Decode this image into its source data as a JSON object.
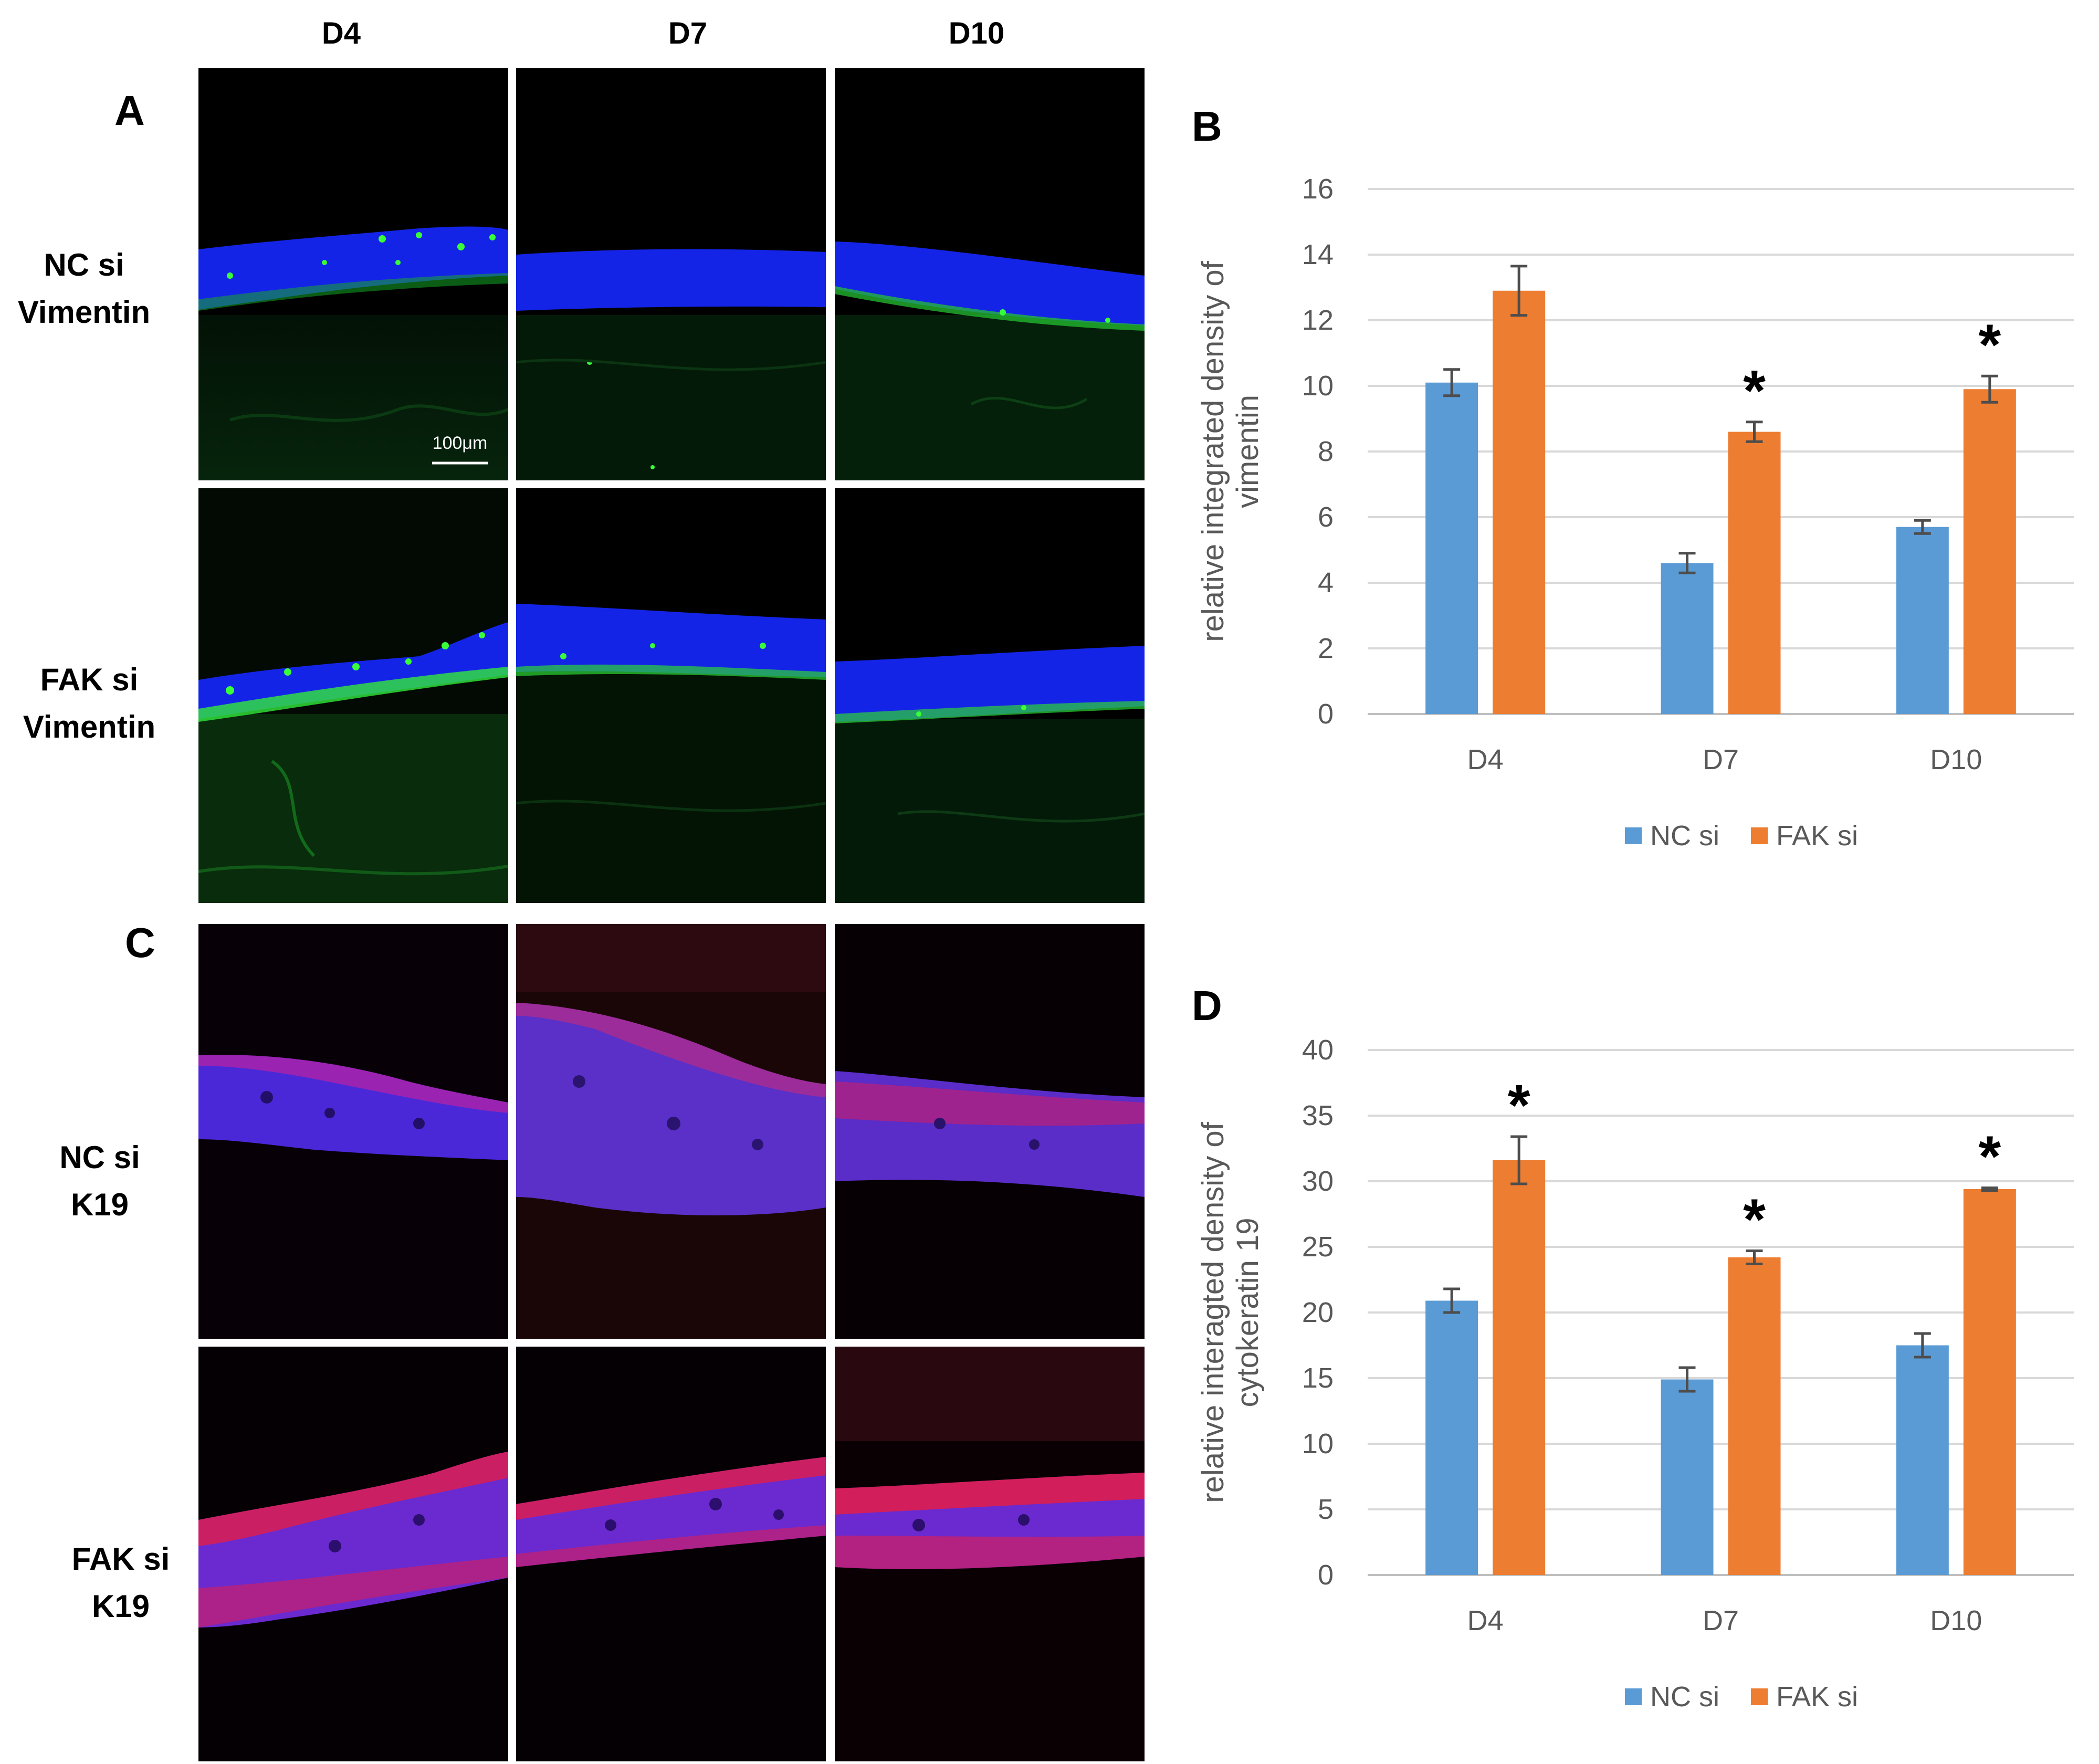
{
  "figure": {
    "columns": [
      "D4",
      "D7",
      "D10"
    ],
    "panels": {
      "a": "A",
      "b": "B",
      "c": "C",
      "d": "D"
    },
    "row_labels": {
      "nc_vim": [
        "NC si",
        "Vimentin"
      ],
      "fak_vim": [
        "FAK si",
        "Vimentin"
      ],
      "nc_k19": [
        "NC si",
        "K19"
      ],
      "fak_k19": [
        "FAK si",
        "K19"
      ]
    },
    "scale_bar": "100μm",
    "colors": {
      "nc": "#5B9BD5",
      "fak": "#ED7D31",
      "nuclei": "#1a2cff",
      "vimentin": "#28e028",
      "k19": "#e01818"
    }
  },
  "chart_data": [
    {
      "type": "bar",
      "panel": "B",
      "categories": [
        "D4",
        "D7",
        "D10"
      ],
      "series": [
        {
          "name": "NC si",
          "values": [
            10.1,
            4.6,
            5.7
          ],
          "errors": [
            0.4,
            0.3,
            0.2
          ],
          "color": "#5B9BD5"
        },
        {
          "name": "FAK si",
          "values": [
            12.9,
            8.6,
            9.9
          ],
          "errors": [
            0.75,
            0.3,
            0.4
          ],
          "color": "#ED7D31"
        }
      ],
      "significance": [
        "",
        "*",
        "*"
      ],
      "ylabel_lines": [
        "relative integrated density of",
        "vimentin"
      ],
      "yticks": [
        "0",
        "2",
        "4",
        "6",
        "8",
        "10",
        "12",
        "14",
        "16"
      ],
      "ylim": [
        0,
        16
      ],
      "legend": "bottom"
    },
    {
      "type": "bar",
      "panel": "D",
      "categories": [
        "D4",
        "D7",
        "D10"
      ],
      "series": [
        {
          "name": "NC si",
          "values": [
            20.9,
            14.9,
            17.5
          ],
          "errors": [
            0.9,
            0.9,
            0.9
          ],
          "color": "#5B9BD5"
        },
        {
          "name": "FAK si",
          "values": [
            31.6,
            24.2,
            29.4
          ],
          "errors": [
            1.8,
            0.5,
            0.1
          ],
          "color": "#ED7D31"
        }
      ],
      "significance": [
        "*",
        "*",
        "*"
      ],
      "ylabel_lines": [
        "relative interagted density of",
        "cytokeratin 19"
      ],
      "yticks": [
        "0",
        "5",
        "10",
        "15",
        "20",
        "25",
        "30",
        "35",
        "40"
      ],
      "ylim": [
        0,
        40
      ],
      "legend": "bottom"
    }
  ]
}
